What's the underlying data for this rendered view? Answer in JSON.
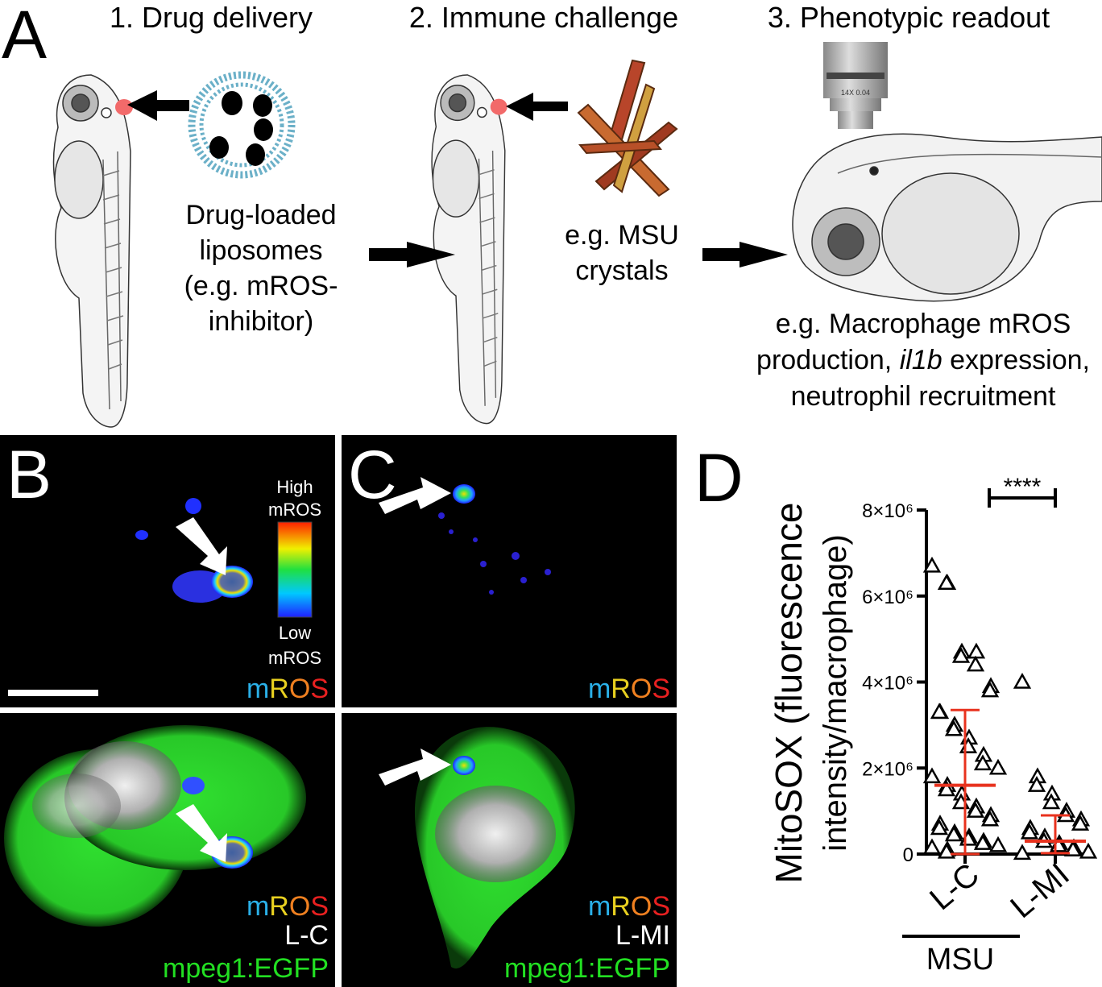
{
  "panel_a": {
    "letter": "A",
    "steps": [
      {
        "title": "1. Drug delivery",
        "caption": [
          "Drug-loaded",
          "liposomes",
          "(e.g. mROS-",
          "inhibitor)"
        ]
      },
      {
        "title": "2. Immune challenge",
        "caption": [
          "e.g. MSU",
          "crystals"
        ]
      },
      {
        "title": "3. Phenotypic readout",
        "caption_line1": "e.g. Macrophage mROS",
        "caption_line2_pre": "production, ",
        "caption_line2_gene": "il1b",
        "caption_line2_post": " expression,",
        "caption_line3": "neutrophil recruitment"
      }
    ],
    "objective_label": "14X 0.04"
  },
  "panel_b": {
    "letter": "B",
    "legend_high": [
      "High",
      "mROS"
    ],
    "legend_low": [
      "Low",
      "mROS"
    ],
    "stain": [
      "m",
      "R",
      "O",
      "S"
    ],
    "treatment": "L-C",
    "reporter": "mpeg1:EGFP"
  },
  "panel_c": {
    "letter": "C",
    "stain": [
      "m",
      "R",
      "O",
      "S"
    ],
    "treatment": "L-MI",
    "reporter": "mpeg1:EGFP"
  },
  "chart_data": {
    "type": "scatter",
    "letter": "D",
    "y_label": [
      "MitoSOX (fluorescence",
      "intensity/macrophage)"
    ],
    "categories": [
      "L-C",
      "L-MI"
    ],
    "group_label": "MSU",
    "significance": "****",
    "ylim": [
      0,
      8000000
    ],
    "yticks": [
      0,
      {
        "value": 2000000,
        "label": "2×10⁶"
      },
      {
        "value": 4000000,
        "label": "4×10⁶"
      },
      {
        "value": 6000000,
        "label": "6×10⁶"
      },
      {
        "value": 8000000,
        "label": "8×10⁶"
      }
    ],
    "values": [
      [
        6700000,
        6300000,
        6300000,
        4700000,
        4600000,
        4700000,
        4400000,
        3900000,
        3800000,
        3300000,
        3300000,
        3000000,
        2900000,
        2700000,
        2500000,
        2300000,
        2100000,
        2000000,
        1800000,
        1600000,
        1500000,
        1400000,
        1200000,
        1100000,
        1000000,
        900000,
        800000,
        700000,
        600000,
        500000,
        450000,
        400000,
        350000,
        300000,
        250000,
        200000,
        150000,
        100000,
        50000
      ],
      [
        4000000,
        1800000,
        1600000,
        1400000,
        1200000,
        1000000,
        900000,
        800000,
        700000,
        600000,
        500000,
        400000,
        300000,
        250000,
        200000,
        150000,
        100000,
        50000,
        20000
      ]
    ],
    "centers": [
      1600000,
      300000
    ],
    "whisker_low": [
      0,
      20000
    ],
    "whisker_high": [
      3350000,
      900000
    ],
    "marker_color": "#000000",
    "summary_color": "#e8321e"
  }
}
